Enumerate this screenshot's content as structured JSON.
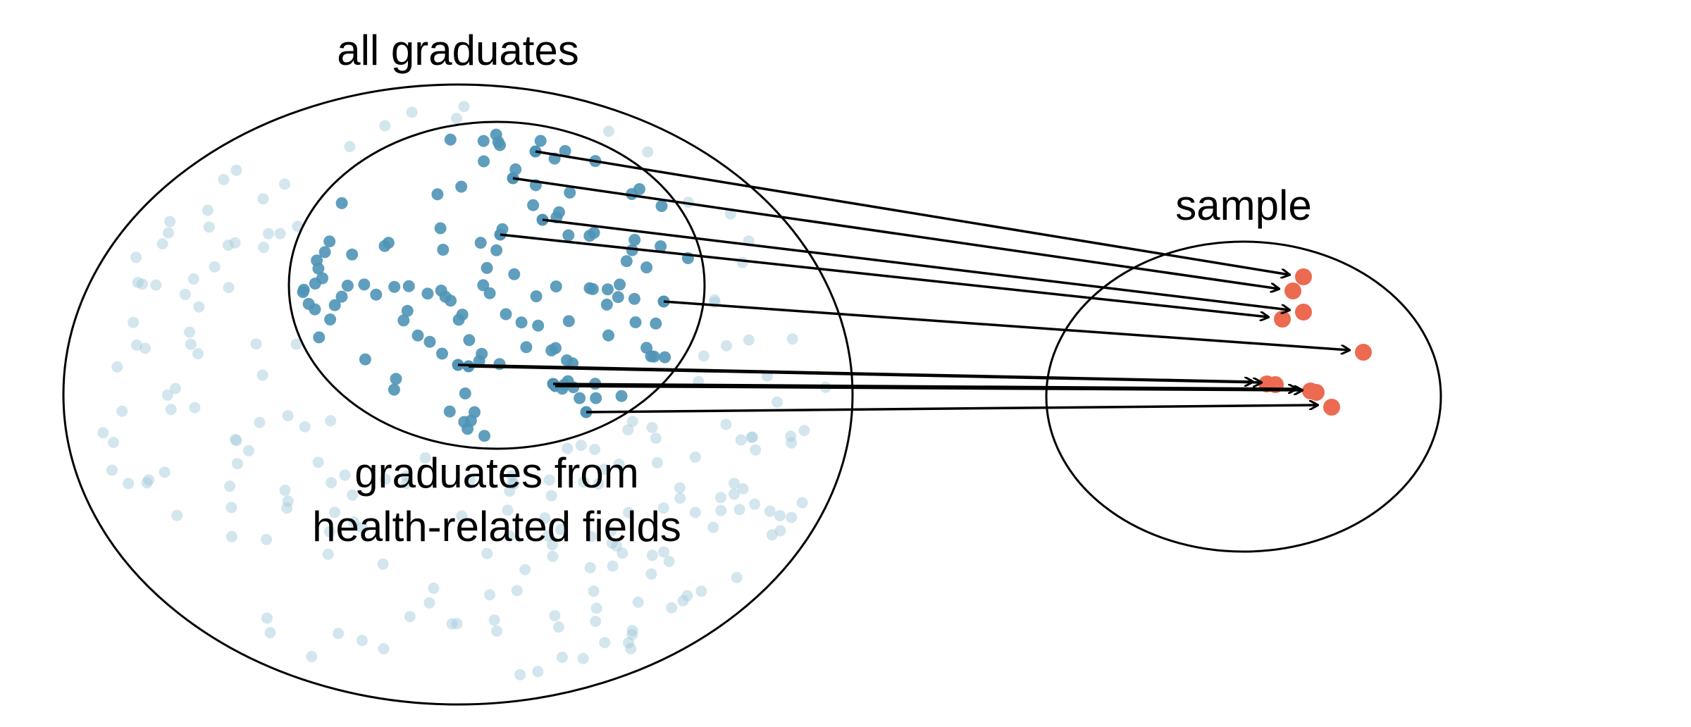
{
  "labels": {
    "population": "all graduates",
    "subpopulation_line1": "graduates from",
    "subpopulation_line2": "health-related fields",
    "sample": "sample"
  },
  "colors": {
    "population_point": "#9ec7d9",
    "subpopulation_point": "#4f94b6",
    "sample_point": "#ec6a50",
    "outline": "#000000"
  },
  "counts": {
    "population_points": 200,
    "subpopulation_points": 120,
    "sample_points": 10,
    "arrows": 10
  }
}
